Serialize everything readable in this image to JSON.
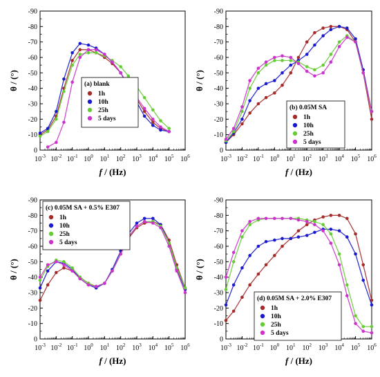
{
  "chart_data": [
    {
      "type": "scatter",
      "panel_label": "(a) blank",
      "xlabel_italic": "f",
      "xlabel_rest": " / (Hz)",
      "ylabel": "θ / (°)",
      "x_scale": "log",
      "xlim": [
        0.001,
        1000000
      ],
      "ylim": [
        0,
        -90
      ],
      "yticks": [
        0,
        -10,
        -20,
        -30,
        -40,
        -50,
        -60,
        -70,
        -80,
        -90
      ],
      "grid": false,
      "legend_position": "center",
      "series": [
        {
          "name": "1h",
          "color": "#a52a2a",
          "x": [
            0.001,
            0.003,
            0.01,
            0.03,
            0.1,
            0.3,
            1,
            3,
            10,
            30,
            100,
            300,
            1000,
            3000,
            10000,
            30000,
            100000
          ],
          "y": [
            -10,
            -13,
            -22,
            -40,
            -58,
            -65,
            -65,
            -63,
            -60,
            -56,
            -50,
            -42,
            -33,
            -25,
            -18,
            -14,
            -12
          ]
        },
        {
          "name": "10h",
          "color": "#1a1acc",
          "x": [
            0.001,
            0.003,
            0.01,
            0.03,
            0.1,
            0.3,
            1,
            3,
            10,
            30,
            100,
            300,
            1000,
            3000,
            10000,
            30000,
            100000
          ],
          "y": [
            -11,
            -14,
            -25,
            -46,
            -63,
            -69,
            -68,
            -66,
            -62,
            -57,
            -50,
            -41,
            -31,
            -22,
            -16,
            -13,
            -12
          ]
        },
        {
          "name": "25h",
          "color": "#66cc33",
          "x": [
            0.001,
            0.003,
            0.01,
            0.03,
            0.1,
            0.3,
            1,
            3,
            10,
            30,
            100,
            300,
            1000,
            3000,
            10000,
            30000,
            100000
          ],
          "y": [
            -9,
            -12,
            -20,
            -38,
            -55,
            -62,
            -63,
            -63,
            -61,
            -58,
            -54,
            -48,
            -41,
            -34,
            -26,
            -19,
            -14
          ]
        },
        {
          "name": "5 days",
          "color": "#cc33cc",
          "x": [
            0.003,
            0.01,
            0.03,
            0.1,
            0.3,
            1,
            3,
            10,
            30,
            100,
            300,
            1000,
            3000,
            10000,
            30000,
            100000
          ],
          "y": [
            -2,
            -5,
            -18,
            -44,
            -60,
            -65,
            -65,
            -62,
            -57,
            -50,
            -42,
            -34,
            -27,
            -20,
            -15,
            -12
          ]
        }
      ]
    },
    {
      "type": "scatter",
      "panel_label": "(b) 0.05M SA",
      "xlabel_italic": "f",
      "xlabel_rest": " / (Hz)",
      "ylabel": "θ / (°)",
      "x_scale": "log",
      "xlim": [
        0.001,
        1000000
      ],
      "ylim": [
        0,
        -90
      ],
      "yticks": [
        0,
        -10,
        -20,
        -30,
        -40,
        -50,
        -60,
        -70,
        -80,
        -90
      ],
      "grid": false,
      "legend_position": "bottom-right",
      "series": [
        {
          "name": "1h",
          "color": "#a52a2a",
          "x": [
            0.001,
            0.003,
            0.01,
            0.03,
            0.1,
            0.3,
            1,
            3,
            10,
            30,
            100,
            300,
            1000,
            3000,
            10000,
            30000,
            100000,
            300000,
            1000000
          ],
          "y": [
            -5,
            -10,
            -17,
            -24,
            -30,
            -34,
            -37,
            -42,
            -50,
            -60,
            -70,
            -76,
            -79,
            -80,
            -80,
            -78,
            -70,
            -50,
            -20
          ]
        },
        {
          "name": "10h",
          "color": "#1a1acc",
          "x": [
            0.001,
            0.003,
            0.01,
            0.03,
            0.1,
            0.3,
            1,
            3,
            10,
            30,
            100,
            300,
            1000,
            3000,
            10000,
            30000,
            100000,
            300000,
            1000000
          ],
          "y": [
            -5,
            -11,
            -20,
            -32,
            -40,
            -43,
            -45,
            -50,
            -55,
            -58,
            -62,
            -68,
            -74,
            -78,
            -80,
            -79,
            -72,
            -52,
            -25
          ]
        },
        {
          "name": "25h",
          "color": "#66cc33",
          "x": [
            0.001,
            0.003,
            0.01,
            0.03,
            0.1,
            0.3,
            1,
            3,
            10,
            30,
            100,
            300,
            1000,
            3000,
            10000,
            30000,
            100000,
            300000,
            1000000
          ],
          "y": [
            -6,
            -12,
            -25,
            -40,
            -50,
            -55,
            -58,
            -58,
            -58,
            -57,
            -54,
            -52,
            -55,
            -62,
            -70,
            -74,
            -70,
            -50,
            -25
          ]
        },
        {
          "name": "5 days",
          "color": "#cc33cc",
          "x": [
            0.001,
            0.003,
            0.01,
            0.03,
            0.1,
            0.3,
            1,
            3,
            10,
            30,
            100,
            300,
            1000,
            3000,
            10000,
            30000,
            100000,
            300000,
            1000000
          ],
          "y": [
            -7,
            -14,
            -28,
            -45,
            -53,
            -57,
            -60,
            -61,
            -60,
            -56,
            -51,
            -48,
            -50,
            -57,
            -67,
            -73,
            -70,
            -50,
            -25
          ]
        }
      ]
    },
    {
      "type": "scatter",
      "panel_label": "(c) 0.05M SA + 0.5% E307",
      "xlabel_italic": "f",
      "xlabel_rest": " / (Hz)",
      "ylabel": "θ / (°)",
      "x_scale": "log",
      "xlim": [
        0.001,
        1000000
      ],
      "ylim": [
        0,
        -90
      ],
      "yticks": [
        0,
        -10,
        -20,
        -30,
        -40,
        -50,
        -60,
        -70,
        -80,
        -90
      ],
      "grid": false,
      "legend_position": "top-left",
      "series": [
        {
          "name": "1h",
          "color": "#a52a2a",
          "x": [
            0.001,
            0.003,
            0.01,
            0.03,
            0.1,
            0.3,
            1,
            3,
            10,
            30,
            100,
            300,
            1000,
            3000,
            10000,
            30000,
            100000,
            300000,
            1000000
          ],
          "y": [
            -25,
            -35,
            -43,
            -46,
            -44,
            -40,
            -36,
            -34,
            -36,
            -44,
            -55,
            -65,
            -72,
            -75,
            -76,
            -74,
            -64,
            -48,
            -33
          ]
        },
        {
          "name": "10h",
          "color": "#1a1acc",
          "x": [
            0.001,
            0.003,
            0.01,
            0.03,
            0.1,
            0.3,
            1,
            3,
            10,
            30,
            100,
            300,
            1000,
            3000,
            10000,
            30000,
            100000,
            300000,
            1000000
          ],
          "y": [
            -33,
            -44,
            -50,
            -49,
            -45,
            -39,
            -35,
            -33,
            -36,
            -45,
            -57,
            -68,
            -75,
            -78,
            -78,
            -74,
            -62,
            -45,
            -32
          ]
        },
        {
          "name": "25h",
          "color": "#66cc33",
          "x": [
            0.001,
            0.003,
            0.01,
            0.03,
            0.1,
            0.3,
            1,
            3,
            10,
            30,
            100,
            300,
            1000,
            3000,
            10000,
            30000,
            100000,
            300000,
            1000000
          ],
          "y": [
            -38,
            -47,
            -51,
            -50,
            -46,
            -40,
            -36,
            -34,
            -36,
            -44,
            -55,
            -66,
            -73,
            -76,
            -76,
            -73,
            -62,
            -46,
            -33
          ]
        },
        {
          "name": "5 days",
          "color": "#cc33cc",
          "x": [
            0.001,
            0.003,
            0.01,
            0.03,
            0.1,
            0.3,
            1,
            3,
            10,
            30,
            100,
            300,
            1000,
            3000,
            10000,
            30000,
            100000,
            300000,
            1000000
          ],
          "y": [
            -40,
            -48,
            -50,
            -48,
            -44,
            -39,
            -35,
            -34,
            -36,
            -44,
            -55,
            -66,
            -73,
            -76,
            -75,
            -72,
            -60,
            -44,
            -30
          ]
        }
      ]
    },
    {
      "type": "scatter",
      "panel_label": "(d) 0.05M SA + 2.0% E307",
      "xlabel_italic": "f",
      "xlabel_rest": " / (Hz)",
      "ylabel": "θ / (°)",
      "x_scale": "log",
      "xlim": [
        0.001,
        1000000
      ],
      "ylim": [
        0,
        -90
      ],
      "yticks": [
        0,
        -10,
        -20,
        -30,
        -40,
        -50,
        -60,
        -70,
        -80,
        -90
      ],
      "grid": false,
      "legend_position": "bottom-left",
      "series": [
        {
          "name": "1h",
          "color": "#a52a2a",
          "x": [
            0.001,
            0.003,
            0.01,
            0.03,
            0.1,
            0.3,
            1,
            3,
            10,
            30,
            100,
            300,
            1000,
            3000,
            10000,
            30000,
            100000,
            300000,
            1000000
          ],
          "y": [
            -12,
            -18,
            -27,
            -35,
            -42,
            -48,
            -54,
            -60,
            -65,
            -70,
            -74,
            -77,
            -79,
            -80,
            -80,
            -78,
            -68,
            -48,
            -25
          ]
        },
        {
          "name": "10h",
          "color": "#1a1acc",
          "x": [
            0.001,
            0.003,
            0.01,
            0.03,
            0.1,
            0.3,
            1,
            3,
            10,
            30,
            100,
            300,
            1000,
            3000,
            10000,
            30000,
            100000,
            300000,
            1000000
          ],
          "y": [
            -22,
            -35,
            -46,
            -54,
            -60,
            -63,
            -64,
            -65,
            -65,
            -66,
            -67,
            -69,
            -71,
            -71,
            -70,
            -66,
            -55,
            -38,
            -22
          ]
        },
        {
          "name": "25h",
          "color": "#66cc33",
          "x": [
            0.001,
            0.003,
            0.01,
            0.03,
            0.1,
            0.3,
            1,
            3,
            10,
            30,
            100,
            300,
            1000,
            3000,
            10000,
            30000,
            100000,
            300000,
            1000000
          ],
          "y": [
            -32,
            -50,
            -66,
            -74,
            -77,
            -78,
            -78,
            -78,
            -78,
            -78,
            -77,
            -76,
            -74,
            -68,
            -55,
            -35,
            -15,
            -8,
            -8
          ]
        },
        {
          "name": "5 days",
          "color": "#cc33cc",
          "x": [
            0.001,
            0.003,
            0.01,
            0.03,
            0.1,
            0.3,
            1,
            3,
            10,
            30,
            100,
            300,
            1000,
            3000,
            10000,
            30000,
            100000,
            300000,
            1000000
          ],
          "y": [
            -40,
            -56,
            -70,
            -76,
            -78,
            -78,
            -78,
            -78,
            -78,
            -77,
            -76,
            -74,
            -70,
            -62,
            -48,
            -28,
            -10,
            -5,
            -4
          ]
        }
      ]
    }
  ]
}
